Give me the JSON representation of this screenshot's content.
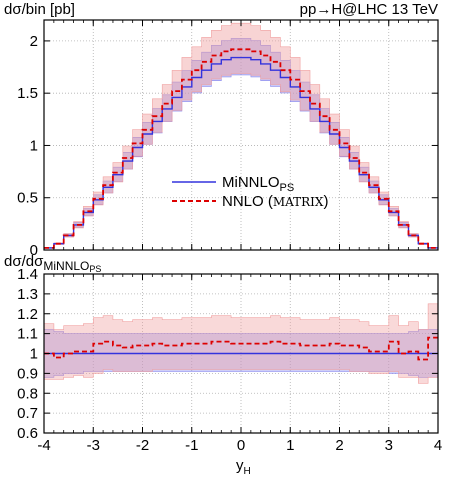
{
  "chart_data": [
    {
      "type": "step",
      "panel": "main",
      "ylabel": "dσ/bin [pb]",
      "title_right": "pp→H@LHC 13 TeV",
      "xlim": [
        -4,
        4
      ],
      "ylim": [
        0,
        2.2
      ],
      "xticks": [
        "-4",
        "-3",
        "-2",
        "-1",
        "0",
        "1",
        "2",
        "3",
        "4"
      ],
      "yticks": [
        "0",
        "0.5",
        "1",
        "1.5",
        "2"
      ],
      "grid": true,
      "legend_position": "center",
      "bin_edges": [
        -4.0,
        -3.8,
        -3.6,
        -3.4,
        -3.2,
        -3.0,
        -2.8,
        -2.6,
        -2.4,
        -2.2,
        -2.0,
        -1.8,
        -1.6,
        -1.4,
        -1.2,
        -1.0,
        -0.8,
        -0.6,
        -0.4,
        -0.2,
        0.0,
        0.2,
        0.4,
        0.6,
        0.8,
        1.0,
        1.2,
        1.4,
        1.6,
        1.8,
        2.0,
        2.2,
        2.4,
        2.6,
        2.8,
        3.0,
        3.2,
        3.4,
        3.6,
        3.8,
        4.0
      ],
      "series": [
        {
          "name_main": "MiNNLO",
          "name_sub": "PS",
          "color": "#3333dd",
          "band_color": "#8888ee",
          "values": [
            0.02,
            0.06,
            0.14,
            0.24,
            0.36,
            0.48,
            0.6,
            0.72,
            0.85,
            0.98,
            1.11,
            1.23,
            1.35,
            1.46,
            1.56,
            1.65,
            1.72,
            1.78,
            1.82,
            1.84,
            1.84,
            1.82,
            1.78,
            1.72,
            1.65,
            1.56,
            1.46,
            1.35,
            1.23,
            1.11,
            0.98,
            0.85,
            0.72,
            0.6,
            0.48,
            0.36,
            0.24,
            0.14,
            0.06,
            0.02
          ],
          "band_low_frac": 0.91,
          "band_high_frac": 1.1
        },
        {
          "name_main": "NNLO (",
          "name_caps": "MATRIX",
          "name_end": ")",
          "color": "#dd0000",
          "band_color": "#f0a0a0",
          "values": [
            0.02,
            0.06,
            0.14,
            0.24,
            0.37,
            0.49,
            0.62,
            0.74,
            0.88,
            1.02,
            1.15,
            1.28,
            1.4,
            1.52,
            1.63,
            1.72,
            1.8,
            1.86,
            1.9,
            1.92,
            1.92,
            1.9,
            1.86,
            1.8,
            1.72,
            1.63,
            1.52,
            1.4,
            1.28,
            1.15,
            1.02,
            0.88,
            0.74,
            0.62,
            0.49,
            0.37,
            0.24,
            0.14,
            0.06,
            0.02
          ],
          "band_low_frac": 0.88,
          "band_high_frac": 1.13
        }
      ]
    },
    {
      "type": "step",
      "panel": "ratio",
      "ylabel_main": "dσ/dσ",
      "ylabel_sub_main": "MiNNLO",
      "ylabel_sub_sub": "PS",
      "xlabel_main": "y",
      "xlabel_sub": "H",
      "xlim": [
        -4,
        4
      ],
      "ylim": [
        0.6,
        1.4
      ],
      "xticks": [
        "-4",
        "-3",
        "-2",
        "-1",
        "0",
        "1",
        "2",
        "3",
        "4"
      ],
      "yticks": [
        "0.6",
        "0.7",
        "0.8",
        "0.9",
        "1",
        "1.1",
        "1.2",
        "1.3",
        "1.4"
      ],
      "grid": true,
      "series": [
        {
          "name": "MiNNLO_PS",
          "color": "#3333dd",
          "values": [
            1,
            1,
            1,
            1,
            1,
            1,
            1,
            1,
            1,
            1,
            1,
            1,
            1,
            1,
            1,
            1,
            1,
            1,
            1,
            1,
            1,
            1,
            1,
            1,
            1,
            1,
            1,
            1,
            1,
            1,
            1,
            1,
            1,
            1,
            1,
            1,
            1,
            1,
            1,
            1
          ],
          "band_low": [
            0.88,
            0.89,
            0.9,
            0.9,
            0.91,
            0.91,
            0.91,
            0.91,
            0.91,
            0.91,
            0.91,
            0.91,
            0.91,
            0.91,
            0.91,
            0.91,
            0.91,
            0.91,
            0.91,
            0.91,
            0.91,
            0.91,
            0.91,
            0.91,
            0.91,
            0.91,
            0.91,
            0.91,
            0.91,
            0.91,
            0.91,
            0.91,
            0.91,
            0.91,
            0.91,
            0.9,
            0.9,
            0.89,
            0.88,
            0.88
          ],
          "band_high": [
            1.12,
            1.11,
            1.1,
            1.1,
            1.1,
            1.1,
            1.1,
            1.1,
            1.1,
            1.1,
            1.1,
            1.1,
            1.1,
            1.1,
            1.1,
            1.1,
            1.1,
            1.1,
            1.1,
            1.1,
            1.1,
            1.1,
            1.1,
            1.1,
            1.1,
            1.1,
            1.1,
            1.1,
            1.1,
            1.1,
            1.1,
            1.1,
            1.1,
            1.1,
            1.1,
            1.1,
            1.1,
            1.11,
            1.12,
            1.12
          ]
        },
        {
          "name": "NNLO (MATRIX)",
          "color": "#dd0000",
          "values": [
            1.0,
            0.98,
            1.0,
            1.01,
            1.01,
            1.05,
            1.06,
            1.04,
            1.03,
            1.04,
            1.04,
            1.05,
            1.04,
            1.04,
            1.05,
            1.05,
            1.05,
            1.06,
            1.06,
            1.05,
            1.05,
            1.05,
            1.05,
            1.06,
            1.05,
            1.05,
            1.04,
            1.04,
            1.04,
            1.05,
            1.04,
            1.04,
            1.03,
            1.01,
            1.01,
            1.06,
            1.0,
            1.01,
            0.97,
            1.08
          ],
          "band_low": [
            0.87,
            0.87,
            0.88,
            0.89,
            0.88,
            0.9,
            0.92,
            0.91,
            0.91,
            0.91,
            0.91,
            0.92,
            0.92,
            0.92,
            0.92,
            0.92,
            0.92,
            0.92,
            0.92,
            0.92,
            0.92,
            0.92,
            0.92,
            0.92,
            0.92,
            0.92,
            0.92,
            0.92,
            0.92,
            0.92,
            0.92,
            0.91,
            0.91,
            0.9,
            0.9,
            0.91,
            0.88,
            0.88,
            0.85,
            0.88
          ],
          "band_high": [
            1.15,
            1.12,
            1.14,
            1.14,
            1.15,
            1.18,
            1.19,
            1.17,
            1.16,
            1.17,
            1.17,
            1.18,
            1.17,
            1.17,
            1.18,
            1.18,
            1.18,
            1.19,
            1.19,
            1.18,
            1.18,
            1.18,
            1.18,
            1.19,
            1.18,
            1.18,
            1.17,
            1.17,
            1.17,
            1.18,
            1.17,
            1.17,
            1.16,
            1.14,
            1.14,
            1.19,
            1.14,
            1.16,
            1.12,
            1.25
          ]
        }
      ]
    }
  ]
}
